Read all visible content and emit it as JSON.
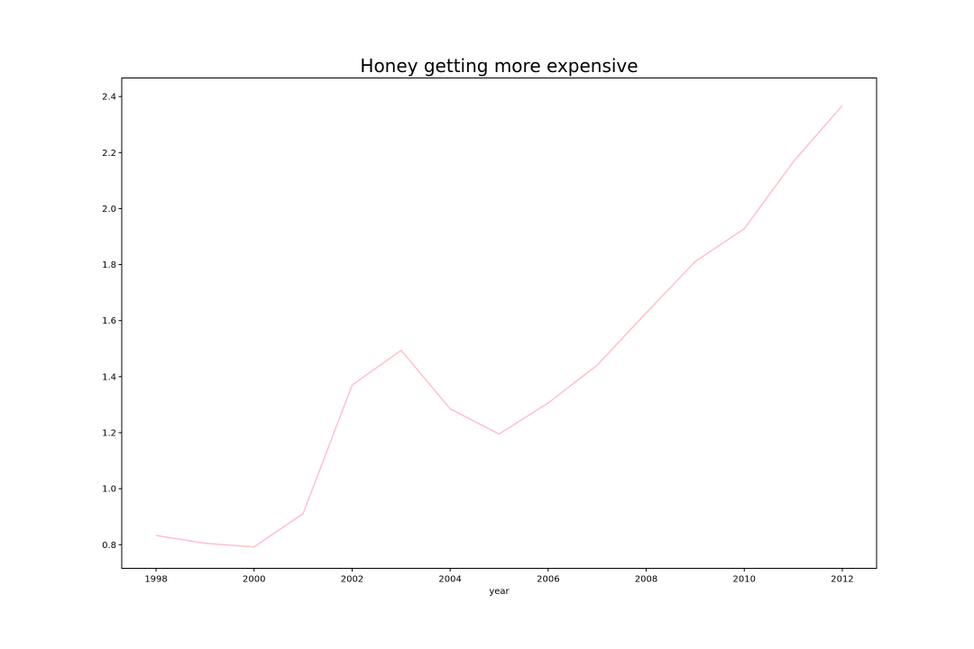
{
  "chart_data": {
    "type": "line",
    "title": "Honey getting more expensive",
    "xlabel": "year",
    "ylabel": "",
    "x": [
      1998,
      1999,
      2000,
      2001,
      2002,
      2003,
      2004,
      2005,
      2006,
      2007,
      2008,
      2009,
      2010,
      2011,
      2012
    ],
    "series": [
      {
        "values": [
          0.833,
          0.805,
          0.792,
          0.911,
          1.37,
          1.494,
          1.285,
          1.195,
          1.306,
          1.441,
          1.628,
          1.811,
          1.928,
          2.167,
          2.368
        ],
        "color": "#ffc0cb"
      }
    ],
    "xlim": [
      1997.3,
      2012.7
    ],
    "ylim": [
      0.7156,
      2.4664
    ],
    "xticks": [
      1998,
      2000,
      2002,
      2004,
      2006,
      2008,
      2010,
      2012
    ],
    "yticks": [
      0.8,
      1.0,
      1.2,
      1.4,
      1.6,
      1.8,
      2.0,
      2.2,
      2.4
    ],
    "ytick_labels": [
      "0.8",
      "1.0",
      "1.2",
      "1.4",
      "1.6",
      "1.8",
      "2.0",
      "2.2",
      "2.4"
    ],
    "grid": false,
    "legend": "none"
  }
}
